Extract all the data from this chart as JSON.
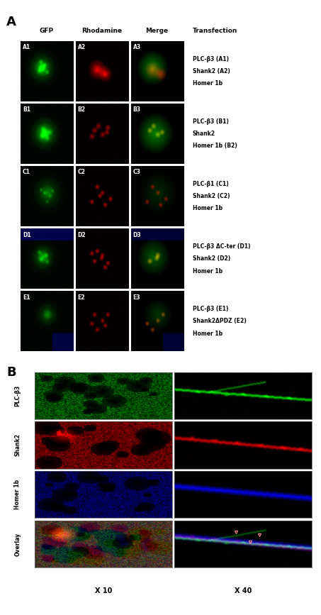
{
  "panel_A_label": "A",
  "panel_B_label": "B",
  "col_headers": [
    "GFP",
    "Rhodamine",
    "Merge",
    "Transfection"
  ],
  "row_labels_A": [
    [
      "A1",
      "A2",
      "A3"
    ],
    [
      "B1",
      "B2",
      "B3"
    ],
    [
      "C1",
      "C2",
      "C3"
    ],
    [
      "D1",
      "D2",
      "D3"
    ],
    [
      "E1",
      "E2",
      "E3"
    ]
  ],
  "transfection_labels": [
    [
      "PLC-β3 (A1)",
      "Shank2 (A2)",
      "Homer 1b"
    ],
    [
      "PLC-β3 (B1)",
      "Shank2",
      "Homer 1b (B2)"
    ],
    [
      "PLC-β1 (C1)",
      "Shank2 (C2)",
      "Homer 1b"
    ],
    [
      "PLC-β3 ΔC-ter (D1)",
      "Shank2 (D2)",
      "Homer 1b"
    ],
    [
      "PLC-β3 (E1)",
      "Shank2ΔPDZ (E2)",
      "Homer 1b"
    ]
  ],
  "row_labels_B": [
    "PLC-β3",
    "Shank2",
    "Homer 1b",
    "Overlay"
  ],
  "col_labels_B": [
    "X 10",
    "X 40"
  ]
}
